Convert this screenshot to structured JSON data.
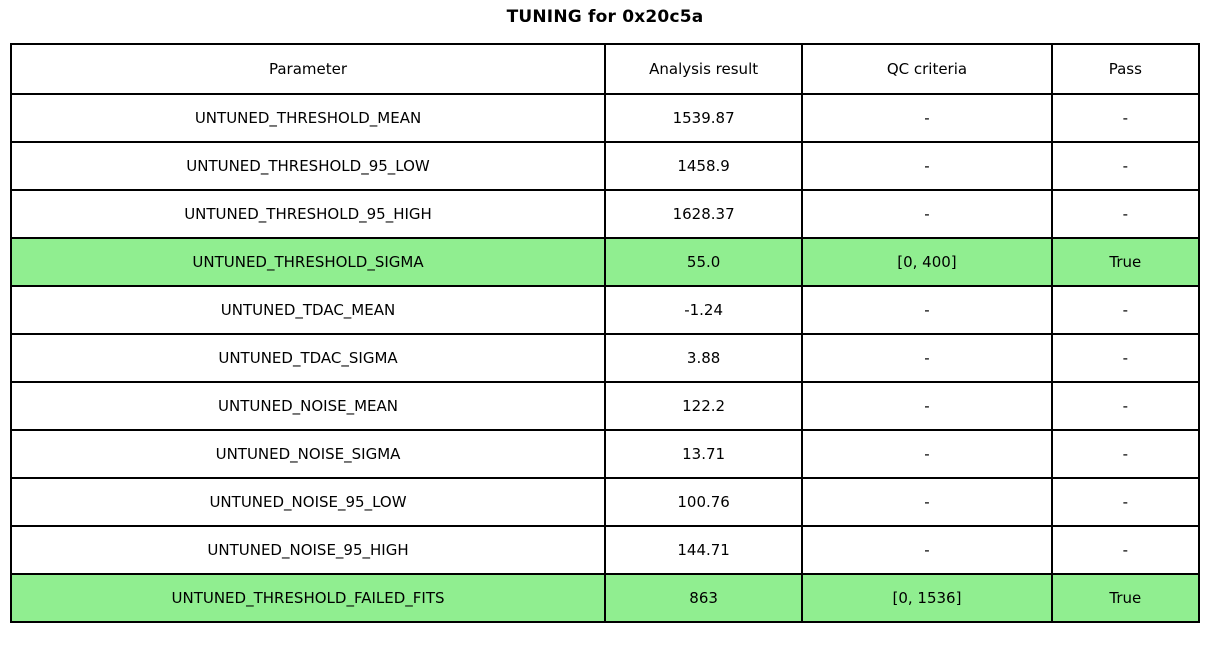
{
  "title": "TUNING for 0x20c5a",
  "colors": {
    "highlight_green": "#90EE90",
    "border": "#000000",
    "background": "#FFFFFF",
    "text": "#000000"
  },
  "chart_data": {
    "type": "table",
    "title": "TUNING for 0x20c5a",
    "columns": [
      "Parameter",
      "Analysis result",
      "QC criteria",
      "Pass"
    ],
    "rows": [
      {
        "cells": [
          "UNTUNED_THRESHOLD_MEAN",
          "1539.87",
          "-",
          "-"
        ],
        "highlighted": false
      },
      {
        "cells": [
          "UNTUNED_THRESHOLD_95_LOW",
          "1458.9",
          "-",
          "-"
        ],
        "highlighted": false
      },
      {
        "cells": [
          "UNTUNED_THRESHOLD_95_HIGH",
          "1628.37",
          "-",
          "-"
        ],
        "highlighted": false
      },
      {
        "cells": [
          "UNTUNED_THRESHOLD_SIGMA",
          "55.0",
          "[0, 400]",
          "True"
        ],
        "highlighted": true
      },
      {
        "cells": [
          "UNTUNED_TDAC_MEAN",
          "-1.24",
          "-",
          "-"
        ],
        "highlighted": false
      },
      {
        "cells": [
          "UNTUNED_TDAC_SIGMA",
          "3.88",
          "-",
          "-"
        ],
        "highlighted": false
      },
      {
        "cells": [
          "UNTUNED_NOISE_MEAN",
          "122.2",
          "-",
          "-"
        ],
        "highlighted": false
      },
      {
        "cells": [
          "UNTUNED_NOISE_SIGMA",
          "13.71",
          "-",
          "-"
        ],
        "highlighted": false
      },
      {
        "cells": [
          "UNTUNED_NOISE_95_LOW",
          "100.76",
          "-",
          "-"
        ],
        "highlighted": false
      },
      {
        "cells": [
          "UNTUNED_NOISE_95_HIGH",
          "144.71",
          "-",
          "-"
        ],
        "highlighted": false
      },
      {
        "cells": [
          "UNTUNED_THRESHOLD_FAILED_FITS",
          "863",
          "[0, 1536]",
          "True"
        ],
        "highlighted": true
      }
    ]
  }
}
